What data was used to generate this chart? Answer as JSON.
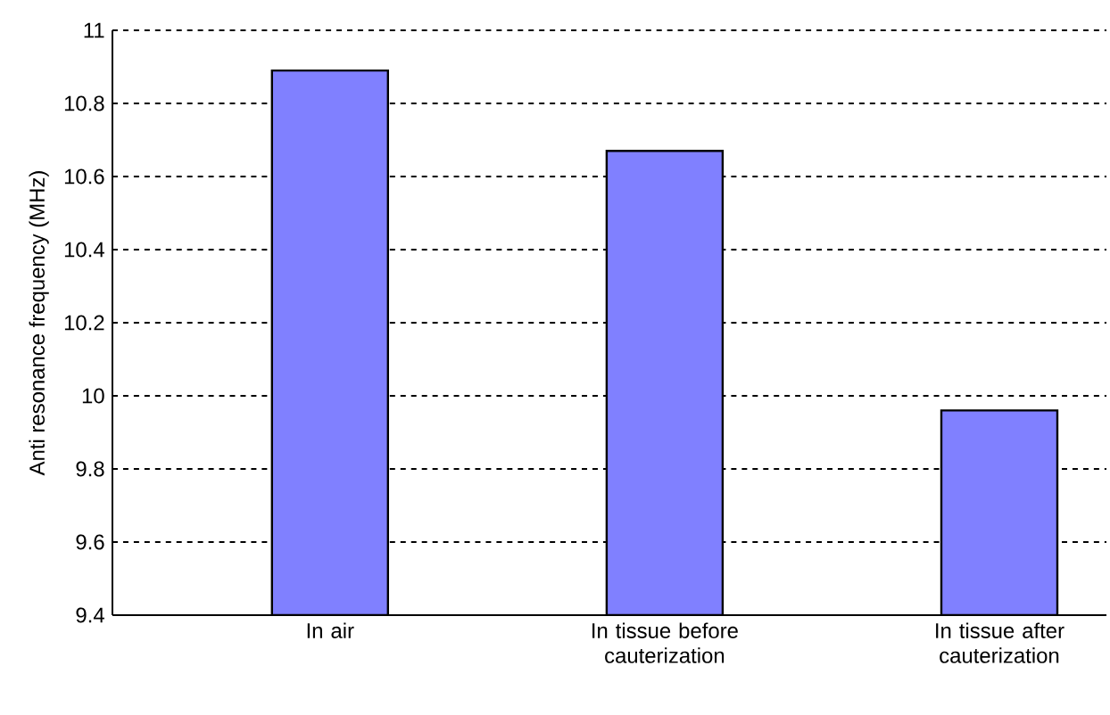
{
  "chart_data": {
    "type": "bar",
    "ylabel": "Anti resonance frequency (MHz)",
    "categories": [
      "In air",
      "In tissue before cauterization",
      "In tissue after cauterization"
    ],
    "values": [
      10.89,
      10.67,
      9.96
    ],
    "color": "#8080ff",
    "ylim": [
      9.4,
      11
    ],
    "yticks": [
      9.4,
      9.6,
      9.8,
      10,
      10.2,
      10.4,
      10.6,
      10.8,
      11
    ],
    "grid": "y"
  }
}
